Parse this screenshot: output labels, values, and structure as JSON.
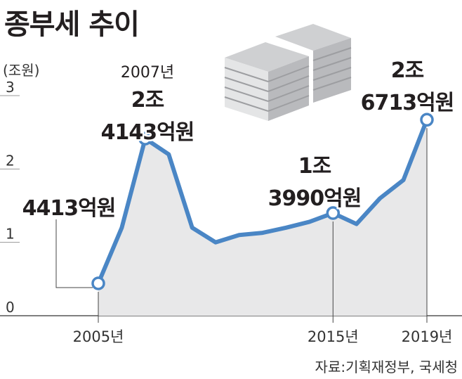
{
  "title": "종부세 추이",
  "unit": "(조원)",
  "source": "자료:기획재정부, 국세청",
  "chart_data": {
    "type": "area",
    "x": [
      2005,
      2006,
      2007,
      2008,
      2009,
      2010,
      2011,
      2012,
      2013,
      2014,
      2015,
      2016,
      2017,
      2018,
      2019
    ],
    "values": [
      0.4413,
      1.2,
      2.4143,
      2.2,
      1.2,
      1.0,
      1.1,
      1.13,
      1.2,
      1.28,
      1.399,
      1.25,
      1.6,
      1.85,
      2.6713
    ],
    "ylim": [
      0,
      3
    ],
    "yticks": [
      0,
      1,
      2,
      3
    ],
    "xticks": [
      {
        "x": 2005,
        "label": "2005년"
      },
      {
        "x": 2015,
        "label": "2015년"
      },
      {
        "x": 2019,
        "label": "2019년"
      }
    ],
    "colors": {
      "line": "#4a86c5",
      "area": "#e8e8e9",
      "axis": "#555555"
    },
    "annotations": [
      {
        "x": 2005,
        "lines": [
          "4413억원"
        ]
      },
      {
        "x": 2007,
        "lines": [
          "2007년",
          "2조",
          "4143억원"
        ]
      },
      {
        "x": 2015,
        "lines": [
          "1조",
          "3990억원"
        ]
      },
      {
        "x": 2019,
        "lines": [
          "2조",
          "6713억원"
        ]
      }
    ],
    "grid": false,
    "legend": "none"
  }
}
